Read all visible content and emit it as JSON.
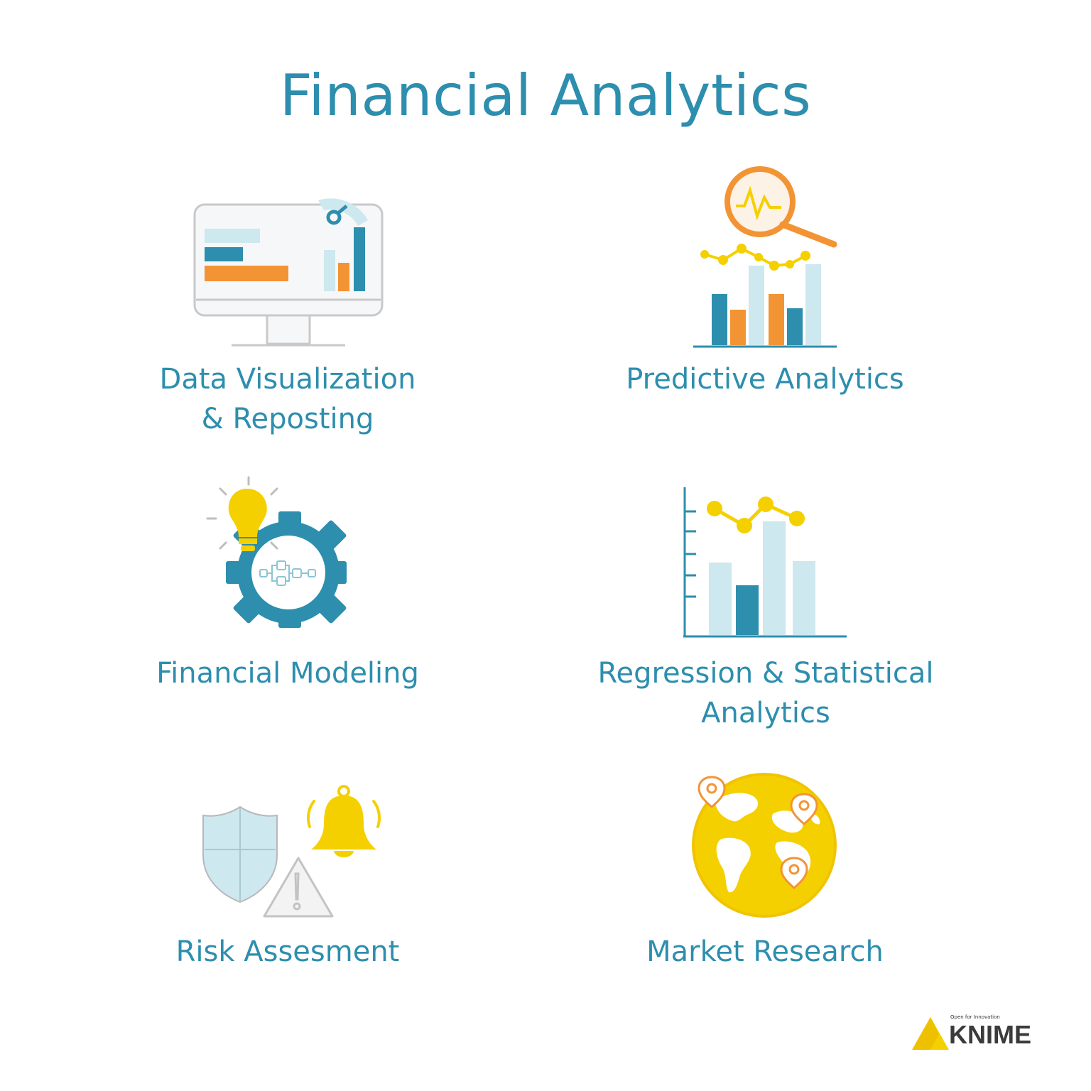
{
  "title": "Financial Analytics",
  "items": [
    {
      "label_line1": "Data Visualization",
      "label_line2": "& Reposting",
      "icon": "monitor-chart-icon"
    },
    {
      "label_line1": "Predictive Analytics",
      "icon": "magnifier-chart-icon"
    },
    {
      "label_line1": "Financial Modeling",
      "icon": "gear-lightbulb-icon"
    },
    {
      "label_line1": "Regression & Statistical",
      "label_line2": "Analytics",
      "icon": "bar-line-chart-icon"
    },
    {
      "label_line1": "Risk Assesment",
      "icon": "shield-bell-warning-icon"
    },
    {
      "label_line1": "Market Research",
      "icon": "globe-pins-icon"
    }
  ],
  "logo": {
    "tagline": "Open for Innovation",
    "word": "KNIME",
    "icon": "knime-triangle-icon"
  },
  "colors": {
    "teal": "#2d8eae",
    "light_blue": "#cde8ee",
    "orange": "#f39434",
    "yellow": "#f5d000"
  }
}
